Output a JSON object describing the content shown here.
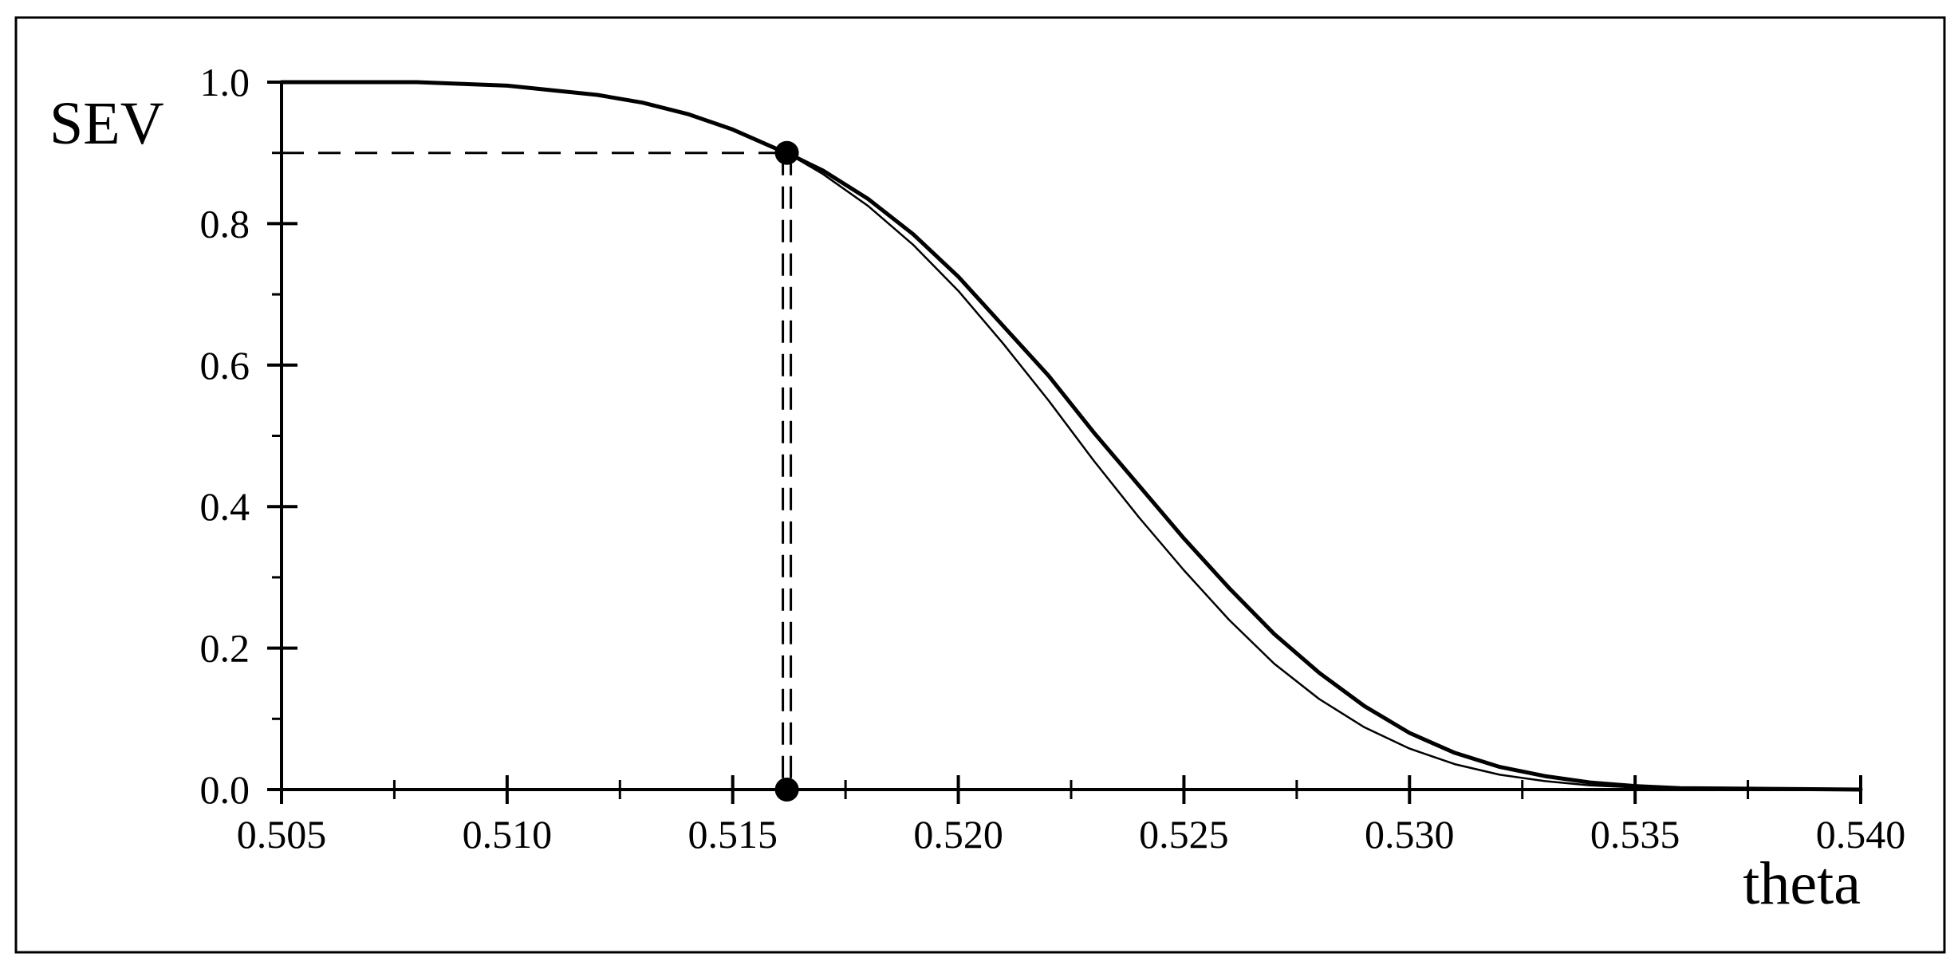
{
  "chart_data": {
    "type": "line",
    "title": "",
    "xlabel": "theta",
    "ylabel": "SEV",
    "xlim": [
      0.505,
      0.54
    ],
    "ylim": [
      0.0,
      1.0
    ],
    "x_ticks": [
      0.505,
      0.51,
      0.515,
      0.52,
      0.525,
      0.53,
      0.535,
      0.54
    ],
    "x_tick_labels": [
      "0.505",
      "0.510",
      "0.515",
      "0.520",
      "0.525",
      "0.530",
      "0.535",
      "0.540"
    ],
    "x_minor_ticks": [
      0.5075,
      0.5125,
      0.5175,
      0.5225,
      0.5275,
      0.5325,
      0.5375
    ],
    "y_ticks": [
      0.0,
      0.2,
      0.4,
      0.6,
      0.8,
      1.0
    ],
    "y_tick_labels": [
      "0.0",
      "0.2",
      "0.4",
      "0.6",
      "0.8",
      "1.0"
    ],
    "y_minor_ticks": [
      0.1,
      0.3,
      0.5,
      0.7,
      0.9
    ],
    "grid": false,
    "legend": "none",
    "series": [
      {
        "style": "thick",
        "x": [
          0.505,
          0.508,
          0.51,
          0.512,
          0.513,
          0.514,
          0.515,
          0.516,
          0.5162,
          0.517,
          0.518,
          0.519,
          0.52,
          0.521,
          0.522,
          0.523,
          0.524,
          0.525,
          0.526,
          0.527,
          0.528,
          0.529,
          0.53,
          0.531,
          0.532,
          0.533,
          0.534,
          0.535,
          0.536,
          0.538,
          0.54
        ],
        "y": [
          1.0,
          1.0,
          0.995,
          0.982,
          0.971,
          0.955,
          0.933,
          0.905,
          0.9,
          0.875,
          0.835,
          0.785,
          0.725,
          0.655,
          0.585,
          0.505,
          0.43,
          0.355,
          0.285,
          0.22,
          0.165,
          0.118,
          0.08,
          0.052,
          0.032,
          0.019,
          0.01,
          0.005,
          0.002,
          0.001,
          0.0
        ]
      },
      {
        "style": "thin",
        "x": [
          0.505,
          0.508,
          0.51,
          0.512,
          0.513,
          0.514,
          0.515,
          0.516,
          0.5162,
          0.517,
          0.518,
          0.519,
          0.52,
          0.521,
          0.522,
          0.523,
          0.524,
          0.525,
          0.526,
          0.527,
          0.528,
          0.529,
          0.53,
          0.531,
          0.532,
          0.533,
          0.534,
          0.535,
          0.536,
          0.538,
          0.54
        ],
        "y": [
          1.0,
          1.0,
          0.995,
          0.982,
          0.971,
          0.955,
          0.933,
          0.905,
          0.9,
          0.87,
          0.825,
          0.77,
          0.705,
          0.63,
          0.55,
          0.465,
          0.385,
          0.31,
          0.24,
          0.178,
          0.128,
          0.088,
          0.058,
          0.036,
          0.021,
          0.012,
          0.006,
          0.003,
          0.001,
          0.0,
          0.0
        ]
      }
    ],
    "reference": {
      "theta": 0.5162,
      "sev": 0.9
    },
    "colors": {
      "line": "#000000",
      "background": "#ffffff"
    }
  }
}
